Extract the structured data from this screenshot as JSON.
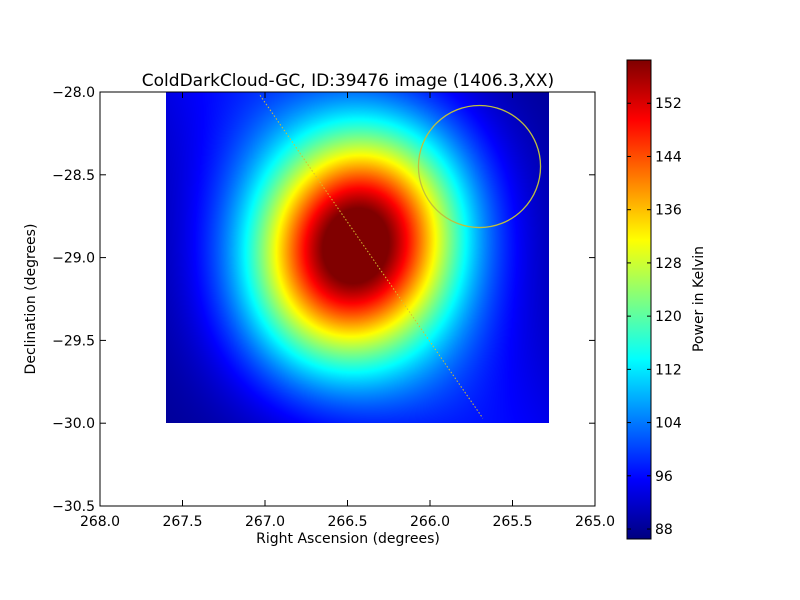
{
  "chart_data": {
    "type": "heatmap",
    "title": "ColdDarkCloud-GC, ID:39476 image (1406.3,XX)",
    "xlabel": "Right Ascension (degrees)",
    "ylabel": "Declination (degrees)",
    "colorbar_label": "Power in Kelvin",
    "xlim": [
      268.0,
      265.0
    ],
    "ylim": [
      -30.5,
      -28.0
    ],
    "x_ticks": [
      268.0,
      267.5,
      267.0,
      266.5,
      266.0,
      265.5,
      265.0
    ],
    "x_tick_labels": [
      "268.0",
      "267.5",
      "267.0",
      "266.5",
      "266.0",
      "265.5",
      "265.0"
    ],
    "y_ticks": [
      -28.0,
      -28.5,
      -29.0,
      -29.5,
      -30.0,
      -30.5
    ],
    "y_tick_labels": [
      "−28.0",
      "−28.5",
      "−29.0",
      "−29.5",
      "−30.0",
      "−30.5"
    ],
    "colorbar_range": [
      86.5,
      158.5
    ],
    "colorbar_ticks": [
      88,
      96,
      104,
      112,
      120,
      128,
      136,
      144,
      152
    ],
    "colorbar_tick_labels": [
      "88",
      "96",
      "104",
      "112",
      "120",
      "128",
      "136",
      "144",
      "152"
    ],
    "colormap": "jet",
    "image_extent": {
      "x": [
        267.6,
        265.28
      ],
      "y": [
        -30.0,
        -28.0
      ]
    },
    "source": {
      "center": [
        266.45,
        -28.93
      ],
      "peak_kelvin": 158,
      "major_sigma_deg": 0.5,
      "minor_sigma_deg": 0.42,
      "major_axis_angle_deg": 65
    },
    "background": {
      "base_kelvin": 88,
      "plane_kelvin": 8,
      "plane_center": [
        266.2,
        -29.3
      ],
      "plane_sigma_deg": 0.5,
      "plane_direction": [
        1.0,
        -1.5
      ]
    },
    "circle": {
      "center": [
        265.7,
        -28.45
      ],
      "radius_deg": 0.37,
      "color": "#bfbf3f"
    },
    "dotted_line": {
      "from": [
        267.03,
        -28.02
      ],
      "to": [
        265.68,
        -29.97
      ],
      "color": "#d6c030"
    }
  }
}
